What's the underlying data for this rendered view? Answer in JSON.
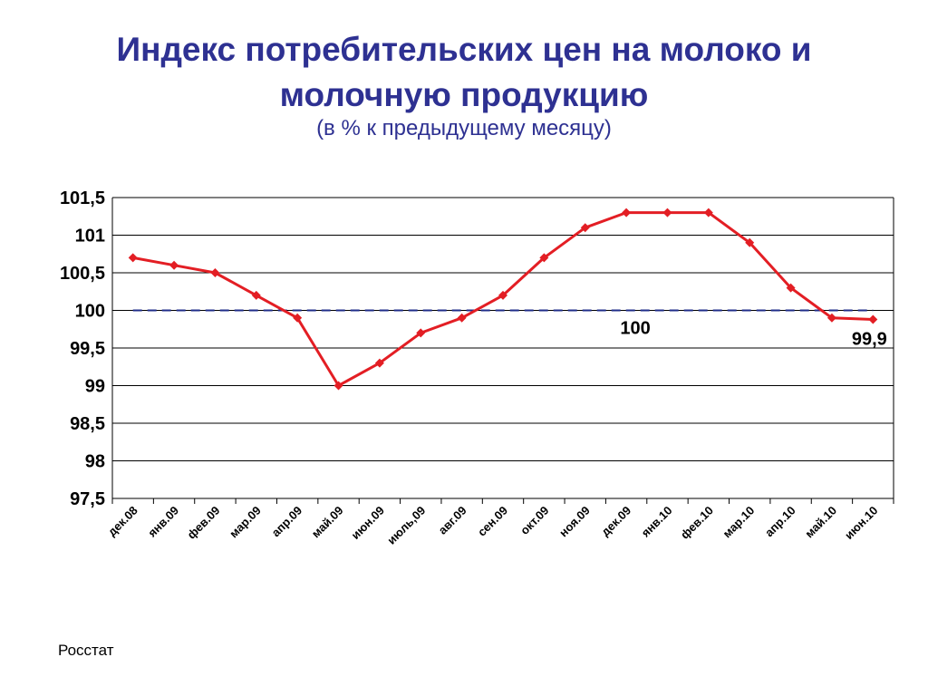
{
  "title_line1": "Индекс потребительских цен на молоко и",
  "title_line2": "молочную продукцию",
  "subtitle": "(в % к предыдущему месяцу)",
  "source": "Росстат",
  "colors": {
    "title": "#2e3192",
    "series": "#e31e24",
    "reference": "#1f2d8a",
    "grid": "#000000"
  },
  "chart_data": {
    "type": "line",
    "title": "Индекс потребительских цен на молоко и молочную продукцию",
    "subtitle": "(в % к предыдущему месяцу)",
    "xlabel": "",
    "ylabel": "",
    "categories": [
      "дек.08",
      "янв.09",
      "фев.09",
      "мар.09",
      "апр.09",
      "май.09",
      "июн.09",
      "июль,09",
      "авг.09",
      "сен.09",
      "окт.09",
      "ноя.09",
      "дек.09",
      "янв.10",
      "фев.10",
      "мар.10",
      "апр.10",
      "май.10",
      "июн.10"
    ],
    "series": [
      {
        "values": [
          100.7,
          100.6,
          100.5,
          100.2,
          99.9,
          99.0,
          99.3,
          99.7,
          99.9,
          100.2,
          100.7,
          101.1,
          101.3,
          101.3,
          101.3,
          100.9,
          100.3,
          99.9,
          99.88
        ]
      }
    ],
    "reference_line": {
      "value": 100,
      "style": "dashed",
      "label": "100"
    },
    "data_labels": [
      {
        "category": "июн.10",
        "text": "99,9"
      }
    ],
    "ylim": [
      97.5,
      101.5
    ],
    "yticks": [
      "97,5",
      "98",
      "98,5",
      "99",
      "99,5",
      "100",
      "100,5",
      "101",
      "101,5"
    ],
    "grid": "horizontal",
    "legend": "none"
  }
}
